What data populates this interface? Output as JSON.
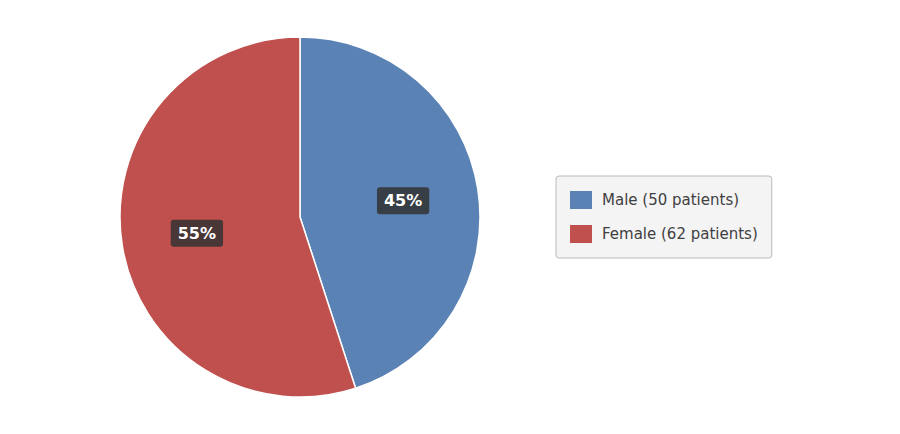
{
  "chart_data": {
    "type": "pie",
    "categories": [
      "Male (50 patients)",
      "Female (62 patients)"
    ],
    "values": [
      45,
      55
    ],
    "value_labels": [
      "45%",
      "55%"
    ],
    "colors": [
      "#5b82b5",
      "#c0504d"
    ],
    "data_labels": true,
    "legend": "right"
  }
}
